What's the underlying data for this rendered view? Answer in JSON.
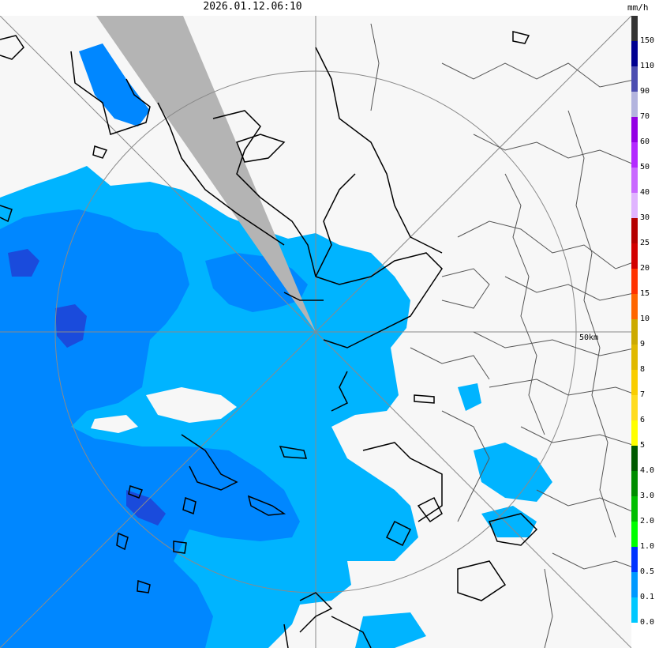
{
  "timestamp": "2026.01.12.06:10",
  "unit": "mm/h",
  "range_label": "50km",
  "colors": {
    "background": "#f7f7f7",
    "light_rain": "#00b4ff",
    "moderate_rain": "#0087ff",
    "heavy": "#1a4bdc",
    "blocked_sector": "#b4b4b4",
    "coast": "#000000",
    "border": "#555555",
    "range_ring": "#8a8a8a"
  },
  "legend": [
    {
      "label": "150",
      "color": "#333333"
    },
    {
      "label": "110",
      "color": "#000090"
    },
    {
      "label": "90",
      "color": "#4c4eb1"
    },
    {
      "label": "70",
      "color": "#b3b4de"
    },
    {
      "label": "60",
      "color": "#9300e4"
    },
    {
      "label": "50",
      "color": "#b329ff"
    },
    {
      "label": "40",
      "color": "#c969ff"
    },
    {
      "label": "30",
      "color": "#e0b4ff"
    },
    {
      "label": "25",
      "color": "#b40000"
    },
    {
      "label": "20",
      "color": "#d20000"
    },
    {
      "label": "15",
      "color": "#ff3200"
    },
    {
      "label": "10",
      "color": "#ff6600"
    },
    {
      "label": "9",
      "color": "#ccaa00"
    },
    {
      "label": "8",
      "color": "#e0b900"
    },
    {
      "label": "7",
      "color": "#f9cd00"
    },
    {
      "label": "6",
      "color": "#ffdc1f"
    },
    {
      "label": "5",
      "color": "#ffff00"
    },
    {
      "label": "4.0",
      "color": "#005a00"
    },
    {
      "label": "3.0",
      "color": "#008c00"
    },
    {
      "label": "2.0",
      "color": "#00be00"
    },
    {
      "label": "1.0",
      "color": "#00ff00"
    },
    {
      "label": "0.5",
      "color": "#0033ff"
    },
    {
      "label": "0.1",
      "color": "#0099ff"
    },
    {
      "label": "0.0",
      "color": "#00c8ff"
    },
    {
      "label": "",
      "color": "#ffffff"
    }
  ]
}
